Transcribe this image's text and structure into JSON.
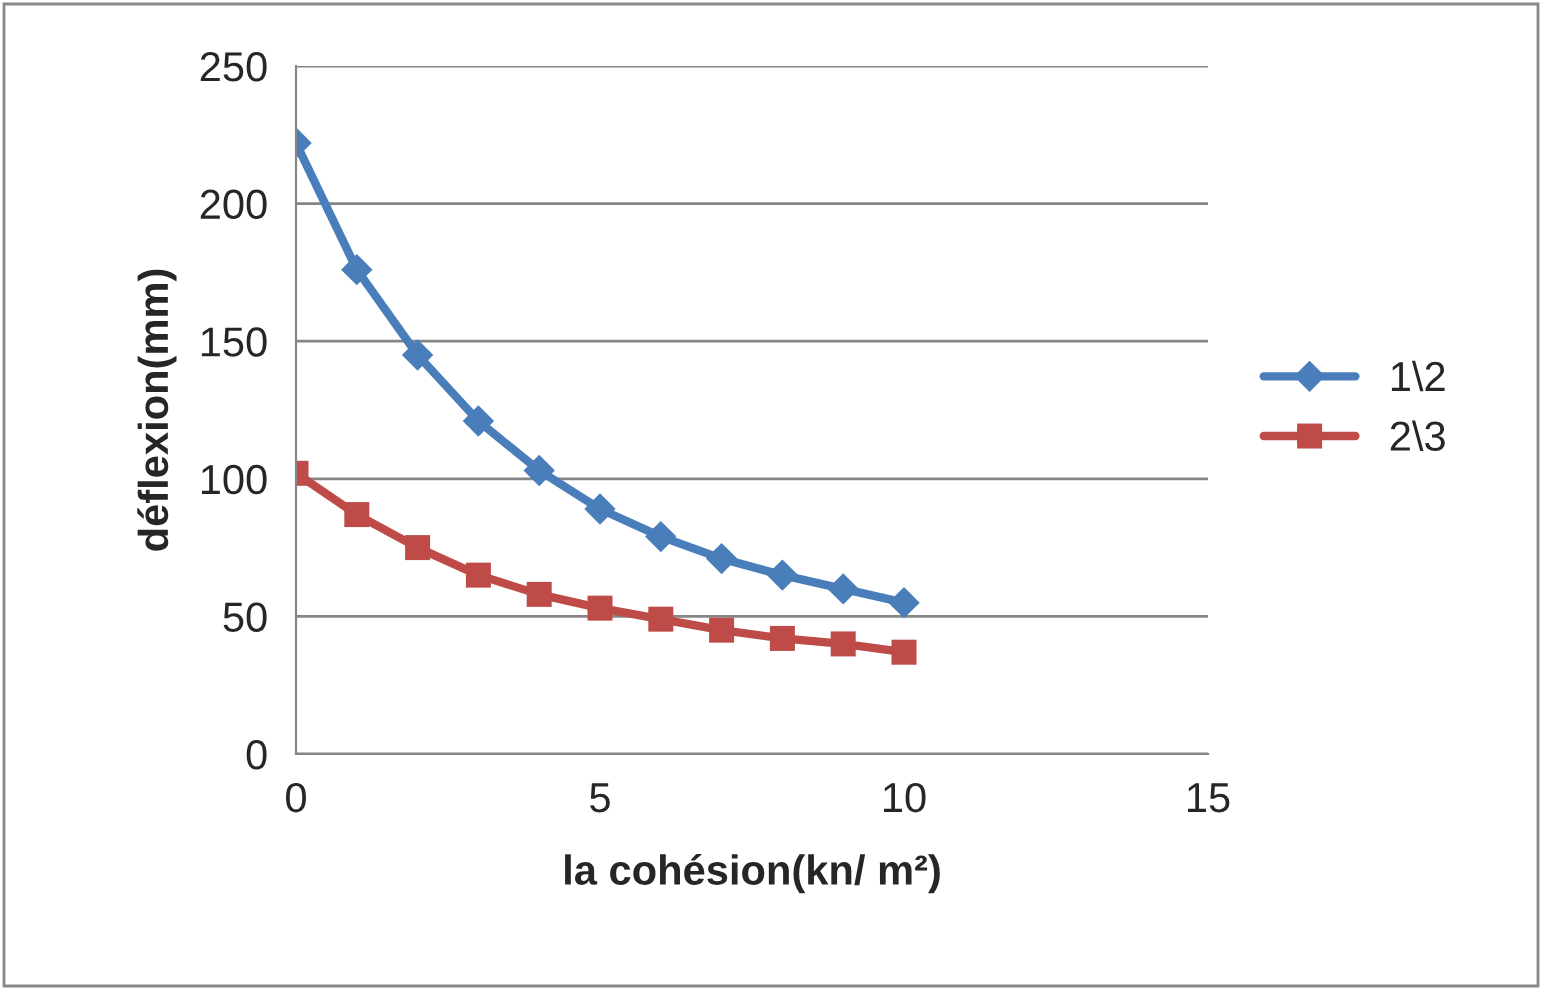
{
  "chart_data": {
    "type": "line",
    "xlabel": "la cohésion(kn/ m²)",
    "ylabel": "déflexion(mm)",
    "x": [
      0,
      1,
      2,
      3,
      4,
      5,
      6,
      7,
      8,
      9,
      10
    ],
    "series": [
      {
        "name": "1\\2",
        "color": "#4a7ebb",
        "marker": "diamond",
        "values": [
          222,
          176,
          145,
          121,
          103,
          89,
          79,
          71,
          65,
          60,
          55
        ]
      },
      {
        "name": "2\\3",
        "color": "#be4b48",
        "marker": "square",
        "values": [
          102,
          87,
          75,
          65,
          58,
          53,
          49,
          45,
          42,
          40,
          37
        ]
      }
    ],
    "xlim": [
      0,
      15
    ],
    "xticks": [
      0,
      5,
      10,
      15
    ],
    "ylim": [
      0,
      250
    ],
    "yticks": [
      0,
      50,
      100,
      150,
      200,
      250
    ],
    "grid": "y",
    "legend": "right",
    "line_style": "solid"
  }
}
